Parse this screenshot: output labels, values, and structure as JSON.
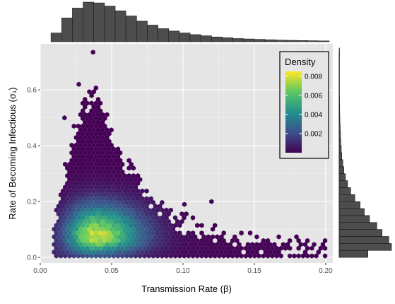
{
  "chart_data": {
    "type": "hexbin",
    "title": "",
    "xlabel": "Transmission Rate (β)",
    "ylabel": "Rate of Becoming Infectious (σ₁)",
    "xlim": [
      0.0,
      0.205
    ],
    "ylim": [
      -0.02,
      0.765
    ],
    "x_ticks": [
      0.0,
      0.05,
      0.1,
      0.15,
      0.2
    ],
    "x_tick_labels": [
      "0.00",
      "0.05",
      "0.10",
      "0.15",
      "0.20"
    ],
    "y_ticks": [
      0.0,
      0.2,
      0.4,
      0.6
    ],
    "y_tick_labels": [
      "0.0",
      "0.2",
      "0.4",
      "0.6"
    ],
    "grid": true,
    "background": "#e5e5e5",
    "colormap": "viridis",
    "colors": {
      "low": "#440154",
      "mid_low": "#3b528b",
      "mid": "#21908c",
      "mid_high": "#5dc863",
      "high": "#fde725"
    },
    "legend": {
      "title": "Density",
      "placement": "top-right",
      "min": 0.0,
      "max": 0.0085,
      "ticks": [
        0.002,
        0.004,
        0.006,
        0.008
      ],
      "tick_labels": [
        "0.002",
        "0.004",
        "0.006",
        "0.008"
      ]
    },
    "density_model": {
      "peak_x": 0.038,
      "peak_y": 0.075,
      "x_support": [
        0.009,
        0.2
      ],
      "y_support": [
        0.0,
        0.62
      ],
      "peak_density": 0.0085
    },
    "outlier_points": [
      [
        0.037,
        0.735
      ],
      [
        0.101,
        0.19
      ],
      [
        0.12,
        0.2
      ],
      [
        0.027,
        0.62
      ],
      [
        0.017,
        0.5
      ]
    ],
    "marginal_x": {
      "placement": "top",
      "bin_start": 0.0075,
      "bin_width": 0.0075,
      "counts": [
        0.22,
        0.6,
        0.85,
        1.0,
        0.98,
        0.9,
        0.78,
        0.65,
        0.52,
        0.42,
        0.33,
        0.27,
        0.22,
        0.18,
        0.15,
        0.12,
        0.1,
        0.08,
        0.07,
        0.06,
        0.05,
        0.04,
        0.035,
        0.03,
        0.025,
        0.02
      ]
    },
    "marginal_y": {
      "placement": "right",
      "bin_start": 0.0,
      "bin_width": 0.025,
      "counts": [
        0.55,
        1.0,
        0.95,
        0.82,
        0.72,
        0.58,
        0.48,
        0.4,
        0.3,
        0.22,
        0.16,
        0.12,
        0.09,
        0.07,
        0.05,
        0.04,
        0.03,
        0.025,
        0.02,
        0.015,
        0.012,
        0.01,
        0.008,
        0.006,
        0.005,
        0.004,
        0.003,
        0.002,
        0.002,
        0.001
      ]
    }
  }
}
